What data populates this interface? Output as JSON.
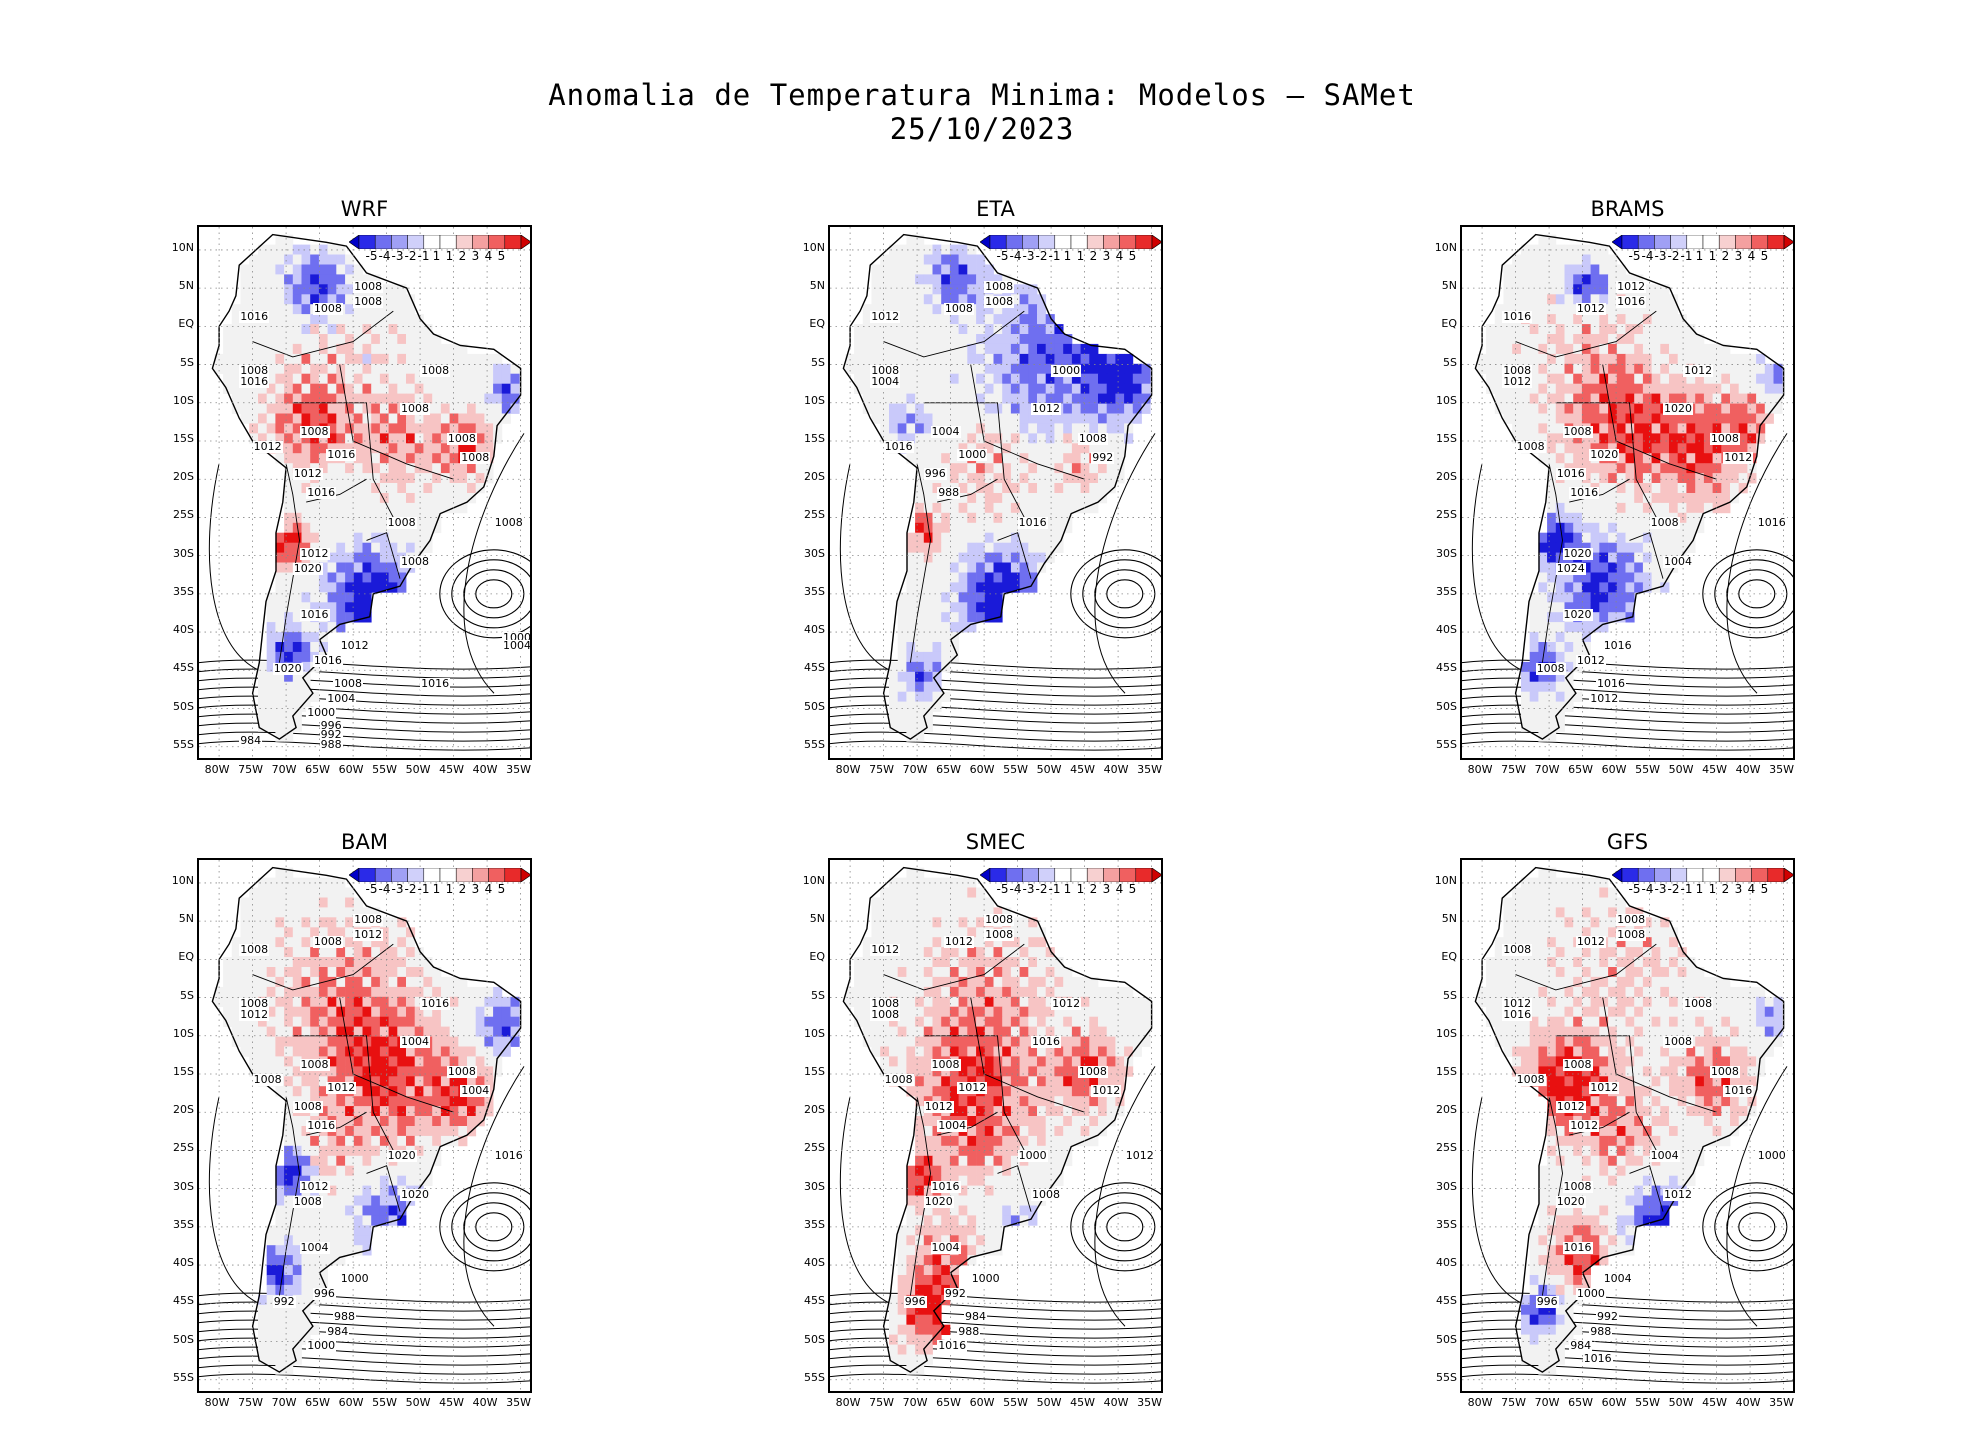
{
  "figure": {
    "title_line1": "Anomalia de Temperatura Minima: Modelos — SAMet",
    "title_line2": "25/10/2023"
  },
  "colors": {
    "cold_strong": "#1a1ad8",
    "cold_mid": "#6f6ff0",
    "cold_light": "#c9c9fa",
    "neutral": "#f2f2f2",
    "warm_light": "#f7c4c4",
    "warm_mid": "#f06060",
    "warm_strong": "#e81010"
  },
  "legend": {
    "labels": [
      "-5",
      "-4",
      "-3",
      "-2",
      "-1",
      "1",
      "1",
      "2",
      "3",
      "4",
      "5"
    ]
  },
  "axes": {
    "lat_labels": [
      "10N",
      "5N",
      "EQ",
      "5S",
      "10S",
      "15S",
      "20S",
      "25S",
      "30S",
      "35S",
      "40S",
      "45S",
      "50S",
      "55S"
    ],
    "lon_labels": [
      "80W",
      "75W",
      "70W",
      "65W",
      "60W",
      "55W",
      "50W",
      "45W",
      "40W",
      "35W"
    ]
  },
  "panels": [
    {
      "name": "WRF",
      "isobars": [
        "1008",
        "1008",
        "1008",
        "1016",
        "1008",
        "1016",
        "1008",
        "1008",
        "1008",
        "1012",
        "1008",
        "1016",
        "1012",
        "1008",
        "1016",
        "1008",
        "1008",
        "1008",
        "1012",
        "1020",
        "1016",
        "1012",
        "1016",
        "1020",
        "1008",
        "1004",
        "1000",
        "996",
        "992",
        "988",
        "984",
        "1016",
        "1000",
        "1004"
      ]
    },
    {
      "name": "ETA",
      "isobars": [
        "1008",
        "1008",
        "1008",
        "1012",
        "1008",
        "1004",
        "1000",
        "1012",
        "1008",
        "1016",
        "1004",
        "1000",
        "996",
        "992",
        "988",
        "1016"
      ]
    },
    {
      "name": "BRAMS",
      "isobars": [
        "1012",
        "1012",
        "1016",
        "1016",
        "1008",
        "1012",
        "1012",
        "1020",
        "1008",
        "1008",
        "1008",
        "1020",
        "1016",
        "1012",
        "1016",
        "1008",
        "1016",
        "1004",
        "1020",
        "1024",
        "1020",
        "1016",
        "1012",
        "1008",
        "1016",
        "1012"
      ]
    },
    {
      "name": "BAM",
      "isobars": [
        "1008",
        "1008",
        "1012",
        "1008",
        "1008",
        "1012",
        "1016",
        "1004",
        "1008",
        "1008",
        "1008",
        "1012",
        "1008",
        "1004",
        "1016",
        "1020",
        "1016",
        "1020",
        "1012",
        "1008",
        "1004",
        "1000",
        "996",
        "992",
        "988",
        "984",
        "1000"
      ]
    },
    {
      "name": "SMEC",
      "isobars": [
        "1008",
        "1012",
        "1008",
        "1012",
        "1008",
        "1008",
        "1012",
        "1016",
        "1008",
        "1008",
        "1008",
        "1012",
        "1012",
        "1012",
        "1004",
        "1000",
        "1012",
        "1008",
        "1016",
        "1020",
        "1004",
        "1000",
        "992",
        "996",
        "984",
        "988",
        "1016"
      ]
    },
    {
      "name": "GFS",
      "isobars": [
        "1008",
        "1012",
        "1008",
        "1008",
        "1012",
        "1016",
        "1008",
        "1008",
        "1008",
        "1008",
        "1008",
        "1012",
        "1012",
        "1016",
        "1012",
        "1004",
        "1000",
        "1012",
        "1008",
        "1020",
        "1016",
        "1004",
        "1000",
        "996",
        "992",
        "988",
        "984",
        "1016"
      ]
    }
  ]
}
